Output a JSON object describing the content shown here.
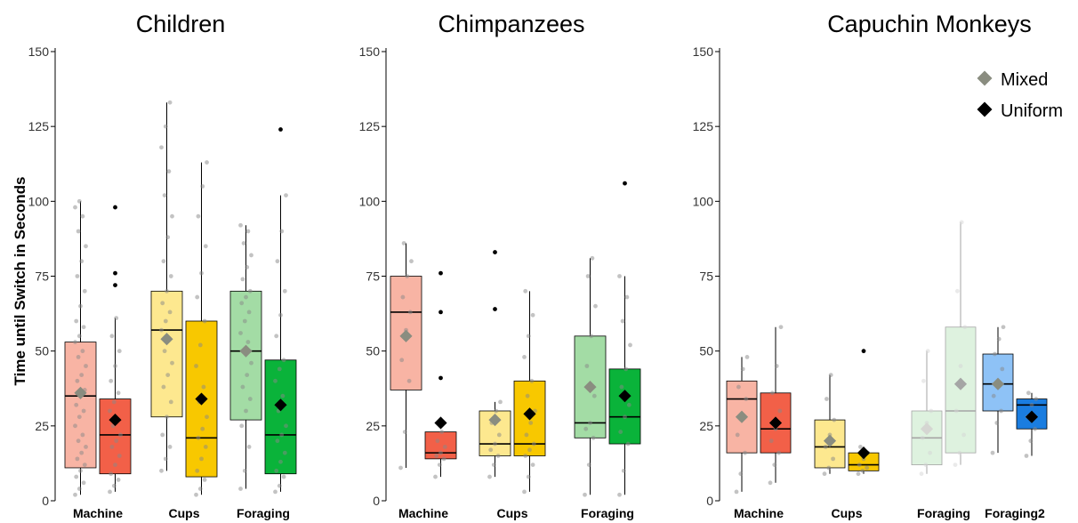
{
  "y_axis_title": "Time until Switch in Seconds",
  "legend": [
    {
      "label": "Mixed",
      "color": "#8a8d80"
    },
    {
      "label": "Uniform",
      "color": "#000000"
    }
  ],
  "chart_data": [
    {
      "type": "box",
      "title": "Children",
      "ylabel": "Time until Switch in Seconds",
      "ylim": [
        0,
        150
      ],
      "yticks": [
        0,
        25,
        50,
        75,
        100,
        125,
        150
      ],
      "categories": [
        "Machine",
        "Cups",
        "Foraging"
      ],
      "boxes": [
        {
          "category": "Machine",
          "condition": "Mixed",
          "color": "#f8b4a4",
          "opacity": 1,
          "whisker_low": 2,
          "q1": 11,
          "median": 35,
          "q3": 53,
          "whisker_high": 100,
          "mean": 36,
          "outliers": [],
          "points": [
            2,
            4,
            6,
            8,
            10,
            12,
            14,
            16,
            18,
            20,
            22,
            25,
            28,
            30,
            32,
            35,
            37,
            40,
            42,
            45,
            48,
            50,
            53,
            55,
            58,
            60,
            65,
            70,
            75,
            80,
            85,
            90,
            95,
            98,
            100
          ]
        },
        {
          "category": "Machine",
          "condition": "Uniform",
          "color": "#f26048",
          "opacity": 1,
          "whisker_low": 3,
          "q1": 9,
          "median": 22,
          "q3": 34,
          "whisker_high": 61,
          "mean": 27,
          "outliers": [
            72,
            76,
            98
          ],
          "points": [
            3,
            5,
            7,
            9,
            12,
            15,
            18,
            20,
            22,
            25,
            27,
            30,
            33,
            36,
            40,
            45,
            50,
            55,
            61
          ]
        },
        {
          "category": "Cups",
          "condition": "Mixed",
          "color": "#fde88f",
          "opacity": 1,
          "whisker_low": 10,
          "q1": 28,
          "median": 57,
          "q3": 70,
          "whisker_high": 133,
          "mean": 54,
          "outliers": [],
          "points": [
            10,
            14,
            18,
            22,
            28,
            33,
            38,
            42,
            46,
            50,
            54,
            57,
            60,
            63,
            66,
            70,
            75,
            80,
            88,
            95,
            102,
            110,
            118,
            125,
            133
          ]
        },
        {
          "category": "Cups",
          "condition": "Uniform",
          "color": "#f8c800",
          "opacity": 1,
          "whisker_low": 2,
          "q1": 8,
          "median": 21,
          "q3": 60,
          "whisker_high": 113,
          "mean": 34,
          "outliers": [],
          "points": [
            2,
            4,
            7,
            10,
            14,
            18,
            21,
            24,
            28,
            33,
            38,
            45,
            52,
            60,
            68,
            76,
            85,
            95,
            105,
            113
          ]
        },
        {
          "category": "Foraging",
          "condition": "Mixed",
          "color": "#a3dca5",
          "opacity": 1,
          "whisker_low": 4,
          "q1": 27,
          "median": 50,
          "q3": 70,
          "whisker_high": 92,
          "mean": 50,
          "outliers": [],
          "points": [
            4,
            10,
            18,
            25,
            30,
            34,
            38,
            42,
            46,
            50,
            53,
            56,
            60,
            63,
            66,
            68,
            70,
            74,
            78,
            82,
            86,
            90,
            92
          ]
        },
        {
          "category": "Foraging",
          "condition": "Uniform",
          "color": "#0ab33a",
          "opacity": 1,
          "whisker_low": 3,
          "q1": 9,
          "median": 22,
          "q3": 47,
          "whisker_high": 102,
          "mean": 32,
          "outliers": [
            124
          ],
          "points": [
            3,
            5,
            8,
            10,
            13,
            16,
            20,
            22,
            25,
            30,
            35,
            40,
            44,
            47,
            55,
            62,
            70,
            80,
            90,
            102
          ]
        }
      ]
    },
    {
      "type": "box",
      "title": "Chimpanzees",
      "ylabel": "",
      "ylim": [
        0,
        150
      ],
      "yticks": [
        0,
        25,
        50,
        75,
        100,
        125,
        150
      ],
      "categories": [
        "Machine",
        "Cups",
        "Foraging"
      ],
      "boxes": [
        {
          "category": "Machine",
          "condition": "Mixed",
          "color": "#f8b4a4",
          "opacity": 1,
          "whisker_low": 11,
          "q1": 37,
          "median": 63,
          "q3": 75,
          "whisker_high": 86,
          "mean": 55,
          "outliers": [],
          "points": [
            11,
            23,
            40,
            47,
            57,
            63,
            68,
            75,
            80,
            86
          ]
        },
        {
          "category": "Machine",
          "condition": "Uniform",
          "color": "#f26048",
          "opacity": 1,
          "whisker_low": 8,
          "q1": 14,
          "median": 16,
          "q3": 23,
          "whisker_high": 23,
          "mean": 26,
          "outliers": [
            41,
            63,
            76
          ],
          "points": [
            8,
            12,
            14,
            15,
            16,
            18,
            20,
            23
          ]
        },
        {
          "category": "Cups",
          "condition": "Mixed",
          "color": "#fde88f",
          "opacity": 1,
          "whisker_low": 8,
          "q1": 15,
          "median": 19,
          "q3": 30,
          "whisker_high": 33,
          "mean": 27,
          "outliers": [
            64,
            83
          ],
          "points": [
            8,
            12,
            15,
            17,
            19,
            22,
            26,
            30,
            33
          ]
        },
        {
          "category": "Cups",
          "condition": "Uniform",
          "color": "#f8c800",
          "opacity": 1,
          "whisker_low": 3,
          "q1": 15,
          "median": 19,
          "q3": 40,
          "whisker_high": 70,
          "mean": 29,
          "outliers": [],
          "points": [
            3,
            8,
            12,
            15,
            17,
            19,
            22,
            26,
            30,
            35,
            40,
            48,
            55,
            62,
            70
          ]
        },
        {
          "category": "Foraging",
          "condition": "Mixed",
          "color": "#a3dca5",
          "opacity": 1,
          "whisker_low": 2,
          "q1": 21,
          "median": 26,
          "q3": 55,
          "whisker_high": 81,
          "mean": 38,
          "outliers": [],
          "points": [
            2,
            12,
            21,
            24,
            26,
            35,
            45,
            55,
            65,
            75,
            81
          ]
        },
        {
          "category": "Foraging",
          "condition": "Uniform",
          "color": "#0ab33a",
          "opacity": 1,
          "whisker_low": 2,
          "q1": 19,
          "median": 28,
          "q3": 44,
          "whisker_high": 75,
          "mean": 35,
          "outliers": [
            106
          ],
          "points": [
            2,
            10,
            19,
            23,
            28,
            32,
            38,
            44,
            52,
            60,
            68,
            75
          ]
        }
      ]
    },
    {
      "type": "box",
      "title": "Capuchin Monkeys",
      "ylabel": "",
      "ylim": [
        0,
        150
      ],
      "yticks": [
        0,
        25,
        50,
        75,
        100,
        125,
        150
      ],
      "categories": [
        "Machine",
        "Cups",
        "Foraging",
        "Foraging2"
      ],
      "boxes": [
        {
          "category": "Machine",
          "condition": "Mixed",
          "color": "#f8b4a4",
          "opacity": 1,
          "whisker_low": 3,
          "q1": 16,
          "median": 34,
          "q3": 40,
          "whisker_high": 48,
          "mean": 28,
          "outliers": [],
          "points": [
            3,
            9,
            16,
            22,
            28,
            34,
            38,
            44,
            48
          ]
        },
        {
          "category": "Machine",
          "condition": "Uniform",
          "color": "#f26048",
          "opacity": 1,
          "whisker_low": 6,
          "q1": 16,
          "median": 24,
          "q3": 36,
          "whisker_high": 58,
          "mean": 26,
          "outliers": [],
          "points": [
            6,
            12,
            16,
            20,
            24,
            30,
            36,
            45,
            58
          ]
        },
        {
          "category": "Cups",
          "condition": "Mixed",
          "color": "#fde88f",
          "opacity": 1,
          "whisker_low": 9,
          "q1": 11,
          "median": 18,
          "q3": 27,
          "whisker_high": 42,
          "mean": 20,
          "outliers": [],
          "points": [
            9,
            11,
            14,
            18,
            22,
            27,
            34,
            42
          ]
        },
        {
          "category": "Cups",
          "condition": "Uniform",
          "color": "#f8c800",
          "opacity": 1,
          "whisker_low": 9,
          "q1": 10,
          "median": 12,
          "q3": 16,
          "whisker_high": 18,
          "mean": 16,
          "outliers": [
            50
          ],
          "points": [
            9,
            10,
            11,
            12,
            14,
            16,
            18
          ]
        },
        {
          "category": "Foraging",
          "condition": "Mixed",
          "color": "#a3dca5",
          "opacity": 0.35,
          "whisker_low": 9,
          "q1": 12,
          "median": 21,
          "q3": 30,
          "whisker_high": 50,
          "mean": 24,
          "outliers": [],
          "points": [
            9,
            12,
            16,
            21,
            26,
            30,
            40,
            50
          ]
        },
        {
          "category": "Foraging",
          "condition": "Uniform",
          "color": "#a3dca5",
          "opacity": 0.35,
          "whisker_low": 12,
          "q1": 16,
          "median": 30,
          "q3": 58,
          "whisker_high": 93,
          "mean": 39,
          "outliers": [],
          "points": [
            12,
            16,
            22,
            30,
            45,
            58,
            70,
            93
          ]
        },
        {
          "category": "Foraging2",
          "condition": "Mixed",
          "color": "#8ec2f6",
          "opacity": 1,
          "whisker_low": 16,
          "q1": 30,
          "median": 39,
          "q3": 49,
          "whisker_high": 58,
          "mean": 39,
          "outliers": [],
          "points": [
            16,
            26,
            30,
            35,
            39,
            44,
            49,
            54,
            58
          ]
        },
        {
          "category": "Foraging2",
          "condition": "Uniform",
          "color": "#1a7de0",
          "opacity": 1,
          "whisker_low": 15,
          "q1": 24,
          "median": 32,
          "q3": 34,
          "whisker_high": 36,
          "mean": 28,
          "outliers": [],
          "points": [
            15,
            20,
            24,
            28,
            32,
            34,
            36
          ]
        }
      ]
    }
  ]
}
